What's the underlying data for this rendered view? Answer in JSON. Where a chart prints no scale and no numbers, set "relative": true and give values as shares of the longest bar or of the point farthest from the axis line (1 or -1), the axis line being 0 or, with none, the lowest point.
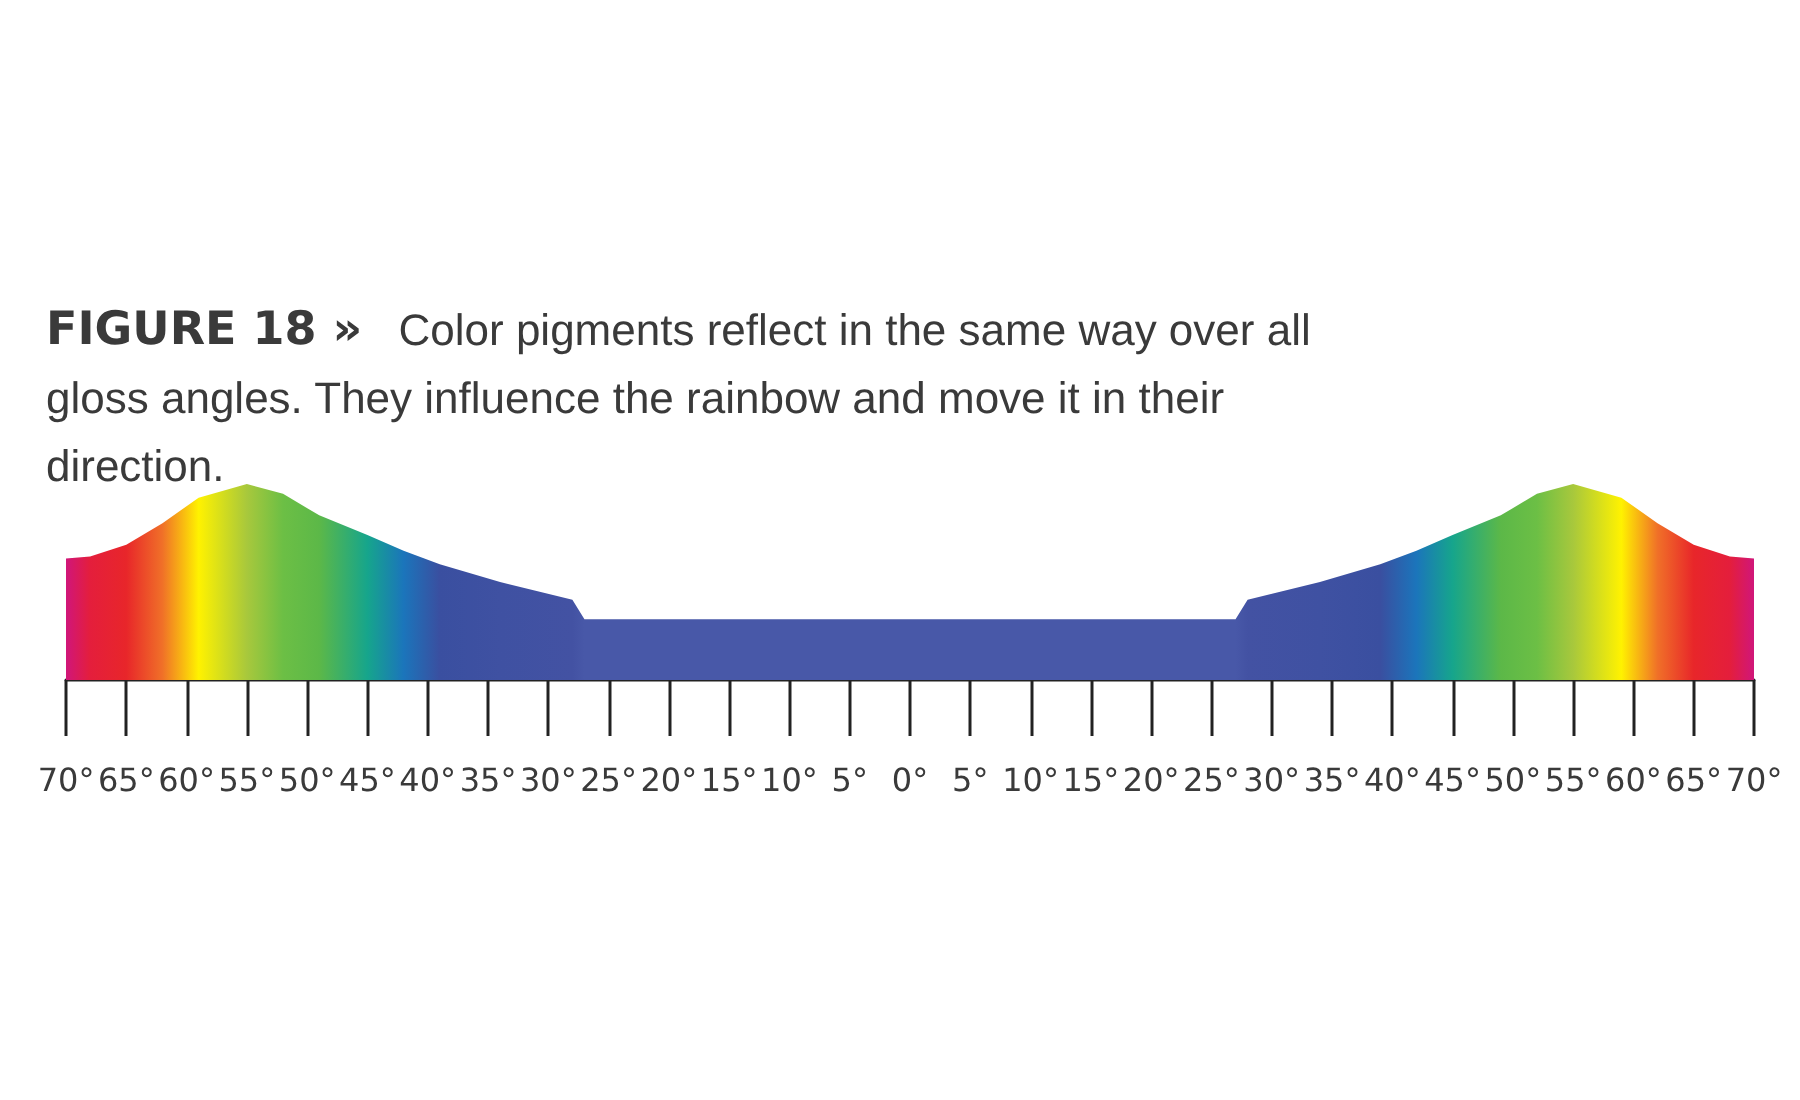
{
  "chart_data": {
    "type": "area",
    "relative": true,
    "title": "FIGURE 18 »",
    "subtitle": "Color pigments reflect in the same way over all gloss angles. They influence the rainbow and move it in their direction.",
    "x": [
      -70,
      -68,
      -65,
      -62,
      -59,
      -55,
      -52,
      -49,
      -45,
      -42,
      -39,
      -34,
      -28,
      -27,
      27,
      28,
      34,
      39,
      42,
      45,
      49,
      52,
      55,
      59,
      62,
      65,
      68,
      70
    ],
    "values": [
      0.62,
      0.63,
      0.69,
      0.8,
      0.93,
      1,
      0.95,
      0.84,
      0.74,
      0.66,
      0.59,
      0.5,
      0.41,
      0.31,
      0.31,
      0.41,
      0.5,
      0.59,
      0.66,
      0.74,
      0.84,
      0.95,
      1,
      0.93,
      0.8,
      0.69,
      0.63,
      0.62
    ],
    "colors": [
      "#d0167a",
      "#e41e3c",
      "#e8262a",
      "#f07028",
      "#fff200",
      "#a8c83c",
      "#6cbf45",
      "#5cb848",
      "#16a58c",
      "#1b75bb",
      "#3a4fa0",
      "#3f51a2",
      "#4352a3",
      "#4858a8",
      "#4858a8",
      "#4352a3",
      "#3f51a2",
      "#3a4fa0",
      "#1b75bb",
      "#16a58c",
      "#5cb848",
      "#6cbf45",
      "#a8c83c",
      "#fff200",
      "#f07028",
      "#e8262a",
      "#e41e3c",
      "#d0167a"
    ],
    "xlim": [
      -70,
      70
    ],
    "xticks": [
      {
        "value": -70,
        "label": "70°"
      },
      {
        "value": -65,
        "label": "65°"
      },
      {
        "value": -60,
        "label": "60°"
      },
      {
        "value": -55,
        "label": "55°"
      },
      {
        "value": -50,
        "label": "50°"
      },
      {
        "value": -45,
        "label": "45°"
      },
      {
        "value": -40,
        "label": "40°"
      },
      {
        "value": -35,
        "label": "35°"
      },
      {
        "value": -30,
        "label": "30°"
      },
      {
        "value": -25,
        "label": "25°"
      },
      {
        "value": -20,
        "label": "20°"
      },
      {
        "value": -15,
        "label": "15°"
      },
      {
        "value": -10,
        "label": "10°"
      },
      {
        "value": -5,
        "label": "5°"
      },
      {
        "value": 0,
        "label": "0°"
      },
      {
        "value": 5,
        "label": "5°"
      },
      {
        "value": 10,
        "label": "10°"
      },
      {
        "value": 15,
        "label": "15°"
      },
      {
        "value": 20,
        "label": "20°"
      },
      {
        "value": 25,
        "label": "25°"
      },
      {
        "value": 30,
        "label": "30°"
      },
      {
        "value": 35,
        "label": "35°"
      },
      {
        "value": 40,
        "label": "40°"
      },
      {
        "value": 45,
        "label": "45°"
      },
      {
        "value": 50,
        "label": "50°"
      },
      {
        "value": 55,
        "label": "55°"
      },
      {
        "value": 60,
        "label": "60°"
      },
      {
        "value": 65,
        "label": "65°"
      },
      {
        "value": 70,
        "label": "70°"
      }
    ],
    "grid": false,
    "marker": "none"
  }
}
